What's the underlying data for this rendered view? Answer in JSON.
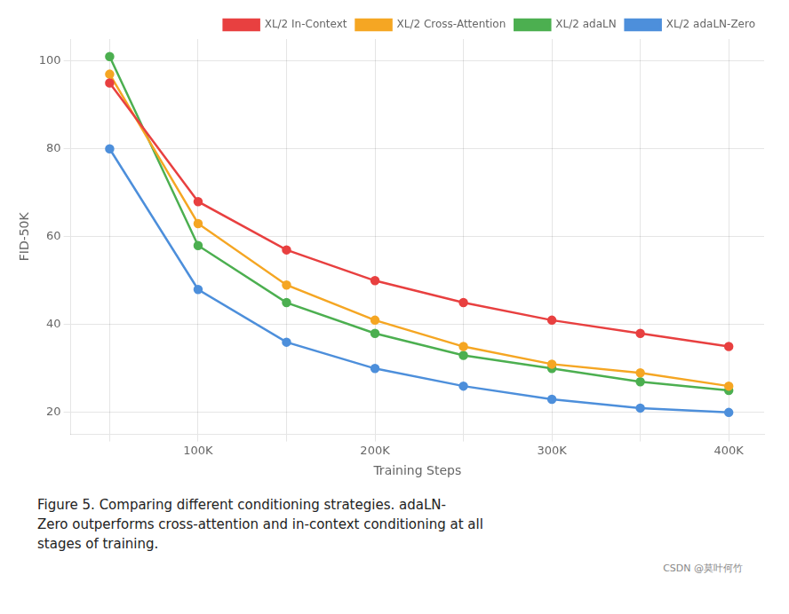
{
  "chart_data": {
    "type": "line",
    "x": [
      50000,
      100000,
      150000,
      200000,
      250000,
      300000,
      350000,
      400000
    ],
    "series": [
      {
        "name": "XL/2 In-Context",
        "color": "#e84040",
        "marker": "circle",
        "values": [
          95,
          68,
          57,
          50,
          45,
          41,
          38,
          35
        ]
      },
      {
        "name": "XL/2 Cross-Attention",
        "color": "#f5a623",
        "marker": "circle",
        "values": [
          97,
          63,
          49,
          41,
          35,
          31,
          29,
          26
        ]
      },
      {
        "name": "XL/2 adaLN",
        "color": "#4caf50",
        "marker": "circle",
        "values": [
          101,
          58,
          45,
          38,
          33,
          30,
          27,
          25
        ]
      },
      {
        "name": "XL/2 adaLN-Zero",
        "color": "#4d8fdb",
        "marker": "circle",
        "values": [
          80,
          48,
          36,
          30,
          26,
          23,
          21,
          20
        ]
      }
    ],
    "x_label": "Training Steps",
    "y_label": "FID-50K",
    "xlim": [
      28000,
      420000
    ],
    "xticks": [
      {
        "value": 50000,
        "label": null
      },
      {
        "value": 100000,
        "label": "100K"
      },
      {
        "value": 150000,
        "label": null
      },
      {
        "value": 200000,
        "label": "200K"
      },
      {
        "value": 250000,
        "label": null
      },
      {
        "value": 300000,
        "label": "300K"
      },
      {
        "value": 350000,
        "label": null
      },
      {
        "value": 400000,
        "label": "400K"
      }
    ],
    "ylim": [
      15,
      105
    ],
    "yticks": [
      20,
      40,
      60,
      80,
      100
    ],
    "grid": true,
    "legend": "upper right",
    "annotations": [
      "Figure 5. Comparing different conditioning strategies. adaLN-",
      "Zero outperforms cross-attention and in-context conditioning at all",
      "stages of training.",
      "CSDN @莫叶何竹"
    ]
  }
}
